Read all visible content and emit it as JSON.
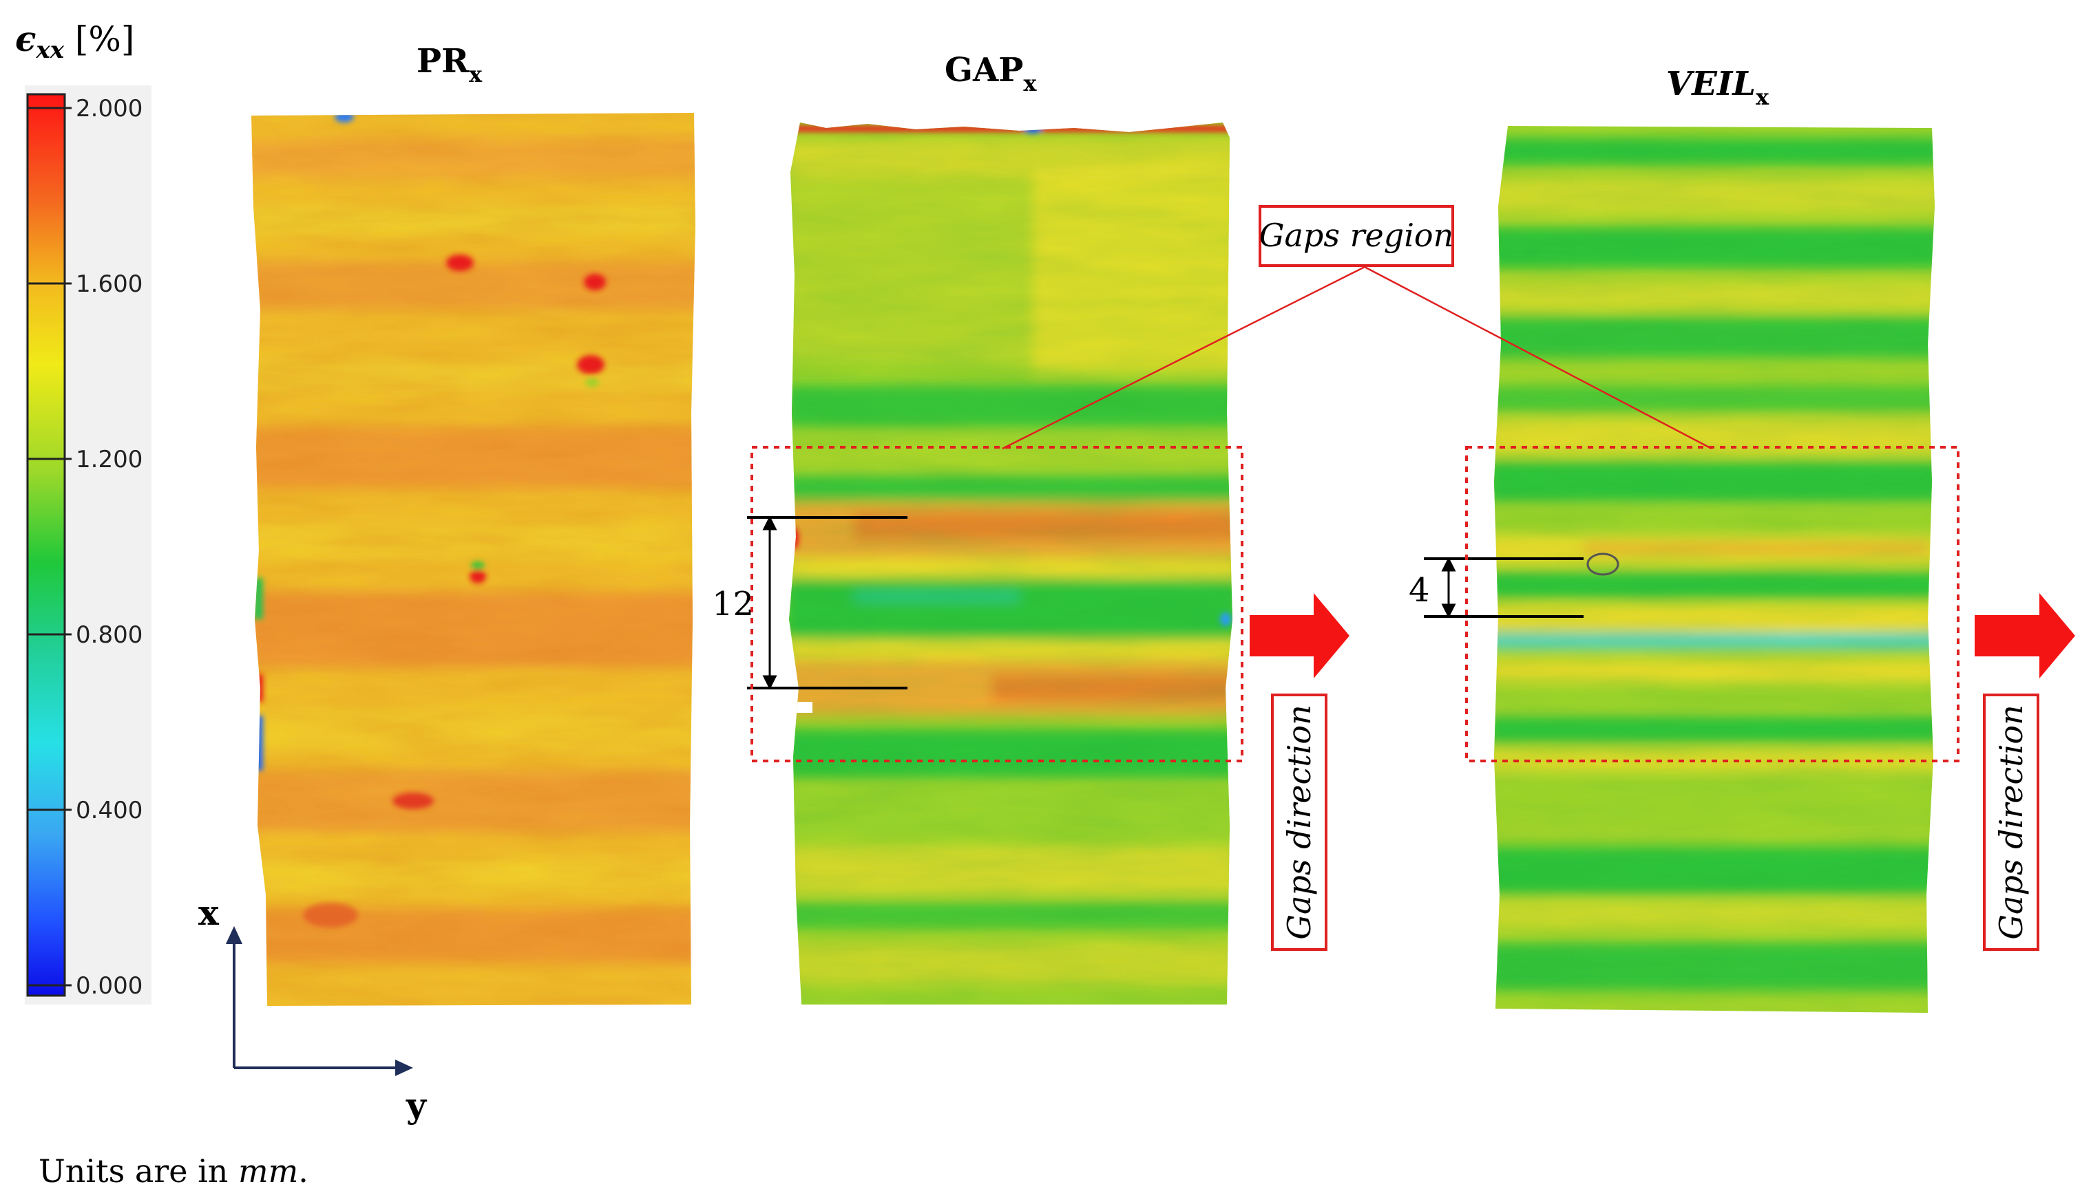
{
  "colorbar": {
    "label": "ϵxx [%]",
    "label_symbol": "ϵ",
    "label_subscript": "xx",
    "label_unit": " [%]",
    "ticks": [
      "2.000",
      "1.600",
      "1.200",
      "0.800",
      "0.400",
      "0.000"
    ],
    "colors": [
      "#ff1a1a",
      "#f6a020",
      "#f2e61b",
      "#66d22a",
      "#1fcc3c",
      "#21d2d2",
      "#3fb6f0",
      "#2244ff",
      "#1010e0"
    ]
  },
  "panels": [
    {
      "name": "PR",
      "subscript": "x",
      "italic": false,
      "field": "mostly orange and yellow strain, isolated red spots"
    },
    {
      "name": "GAP",
      "subscript": "x",
      "italic": false
    },
    {
      "name": "VEIL",
      "subscript": "x",
      "italic": true
    }
  ],
  "annotations": {
    "gaps_region": "Gaps region",
    "gaps_direction": "Gaps direction",
    "dim_gap": "12",
    "dim_veil": "4"
  },
  "axes": {
    "x": "x",
    "y": "y"
  },
  "footnote": {
    "prefix": "Units are in ",
    "unit": "mm",
    "suffix": "."
  },
  "palette": {
    "red": "#e8211e",
    "orange": "#f08a2a",
    "yellow": "#f2d62c",
    "green": "#33c43a",
    "cyan": "#27cfd6",
    "navy": "#1f2f5a",
    "annotation_red": "#e02020"
  }
}
